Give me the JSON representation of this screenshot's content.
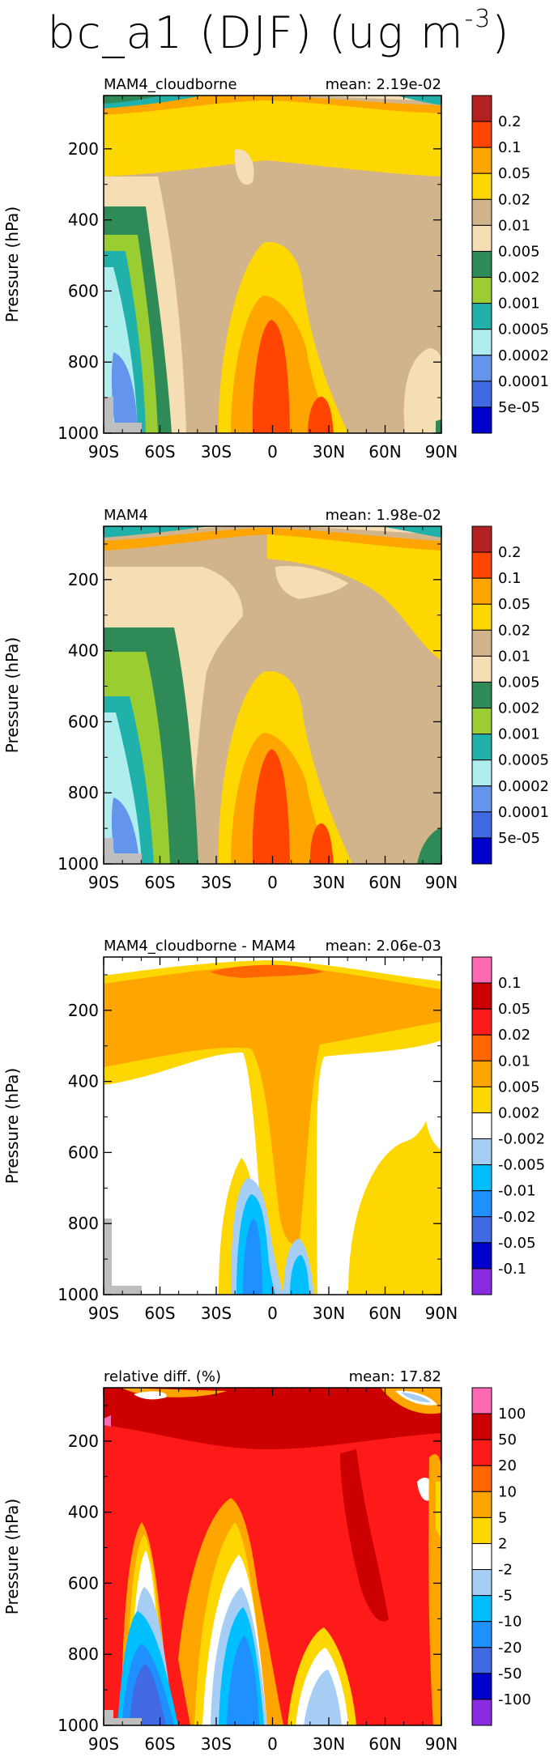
{
  "figure": {
    "title_prefix": "bc_a1 (DJF) (ug m",
    "title_exponent": "-3",
    "title_suffix": ")"
  },
  "chart_data": [
    {
      "type": "contour",
      "label": "MAM4_cloudborne",
      "mean_text": "mean: 2.19e-02",
      "ylabel": "Pressure (hPa)",
      "xticks": [
        "90S",
        "60S",
        "30S",
        "0",
        "30N",
        "60N",
        "90N"
      ],
      "yticks": [
        "200",
        "400",
        "600",
        "800",
        "1000"
      ],
      "ytick_values": [
        200,
        400,
        600,
        800,
        1000
      ],
      "xlim": [
        -90,
        90
      ],
      "ylim": [
        1000,
        50
      ],
      "levels": [
        "0.2",
        "0.1",
        "0.05",
        "0.02",
        "0.01",
        "0.005",
        "0.002",
        "0.001",
        "0.0005",
        "0.0002",
        "0.0001",
        "5e-05"
      ],
      "colors": [
        "#b22222",
        "#ff4500",
        "#ffa500",
        "#ffd700",
        "#d2b48c",
        "#f5deb3",
        "#2e8b57",
        "#9acd32",
        "#20b2aa",
        "#afeeee",
        "#6495ed",
        "#4169e1",
        "#0000cd"
      ]
    },
    {
      "type": "contour",
      "label": "MAM4",
      "mean_text": "mean: 1.98e-02",
      "ylabel": "Pressure (hPa)",
      "xticks": [
        "90S",
        "60S",
        "30S",
        "0",
        "30N",
        "60N",
        "90N"
      ],
      "yticks": [
        "200",
        "400",
        "600",
        "800",
        "1000"
      ],
      "ytick_values": [
        200,
        400,
        600,
        800,
        1000
      ],
      "xlim": [
        -90,
        90
      ],
      "ylim": [
        1000,
        50
      ],
      "levels": [
        "0.2",
        "0.1",
        "0.05",
        "0.02",
        "0.01",
        "0.005",
        "0.002",
        "0.001",
        "0.0005",
        "0.0002",
        "0.0001",
        "5e-05"
      ],
      "colors": [
        "#b22222",
        "#ff4500",
        "#ffa500",
        "#ffd700",
        "#d2b48c",
        "#f5deb3",
        "#2e8b57",
        "#9acd32",
        "#20b2aa",
        "#afeeee",
        "#6495ed",
        "#4169e1",
        "#0000cd"
      ]
    },
    {
      "type": "contour",
      "label": "MAM4_cloudborne - MAM4",
      "mean_text": "mean: 2.06e-03",
      "ylabel": "Pressure (hPa)",
      "xticks": [
        "90S",
        "60S",
        "30S",
        "0",
        "30N",
        "60N",
        "90N"
      ],
      "yticks": [
        "200",
        "400",
        "600",
        "800",
        "1000"
      ],
      "ytick_values": [
        200,
        400,
        600,
        800,
        1000
      ],
      "xlim": [
        -90,
        90
      ],
      "ylim": [
        1000,
        50
      ],
      "levels": [
        "0.1",
        "0.05",
        "0.02",
        "0.01",
        "0.005",
        "0.002",
        "-0.002",
        "-0.005",
        "-0.01",
        "-0.02",
        "-0.05",
        "-0.1"
      ],
      "colors": [
        "#ff69b4",
        "#cc0000",
        "#ff1a1a",
        "#ff6600",
        "#ffa500",
        "#ffd700",
        "#ffffff",
        "#a6cef5",
        "#00bfff",
        "#1e90ff",
        "#4169e1",
        "#0000cd",
        "#8a2be2"
      ]
    },
    {
      "type": "contour",
      "label": "relative diff. (%)",
      "mean_text": "mean: 17.82",
      "ylabel": "Pressure (hPa)",
      "xticks": [
        "90S",
        "60S",
        "30S",
        "0",
        "30N",
        "60N",
        "90N"
      ],
      "yticks": [
        "200",
        "400",
        "600",
        "800",
        "1000"
      ],
      "ytick_values": [
        200,
        400,
        600,
        800,
        1000
      ],
      "xlim": [
        -90,
        90
      ],
      "ylim": [
        1000,
        50
      ],
      "levels": [
        "100",
        "50",
        "20",
        "10",
        "5",
        "2",
        "-2",
        "-5",
        "-10",
        "-20",
        "-50",
        "-100"
      ],
      "colors": [
        "#ff69b4",
        "#cc0000",
        "#ff1a1a",
        "#ff6600",
        "#ffa500",
        "#ffd700",
        "#ffffff",
        "#a6cef5",
        "#00bfff",
        "#1e90ff",
        "#4169e1",
        "#0000cd",
        "#8a2be2"
      ]
    }
  ]
}
